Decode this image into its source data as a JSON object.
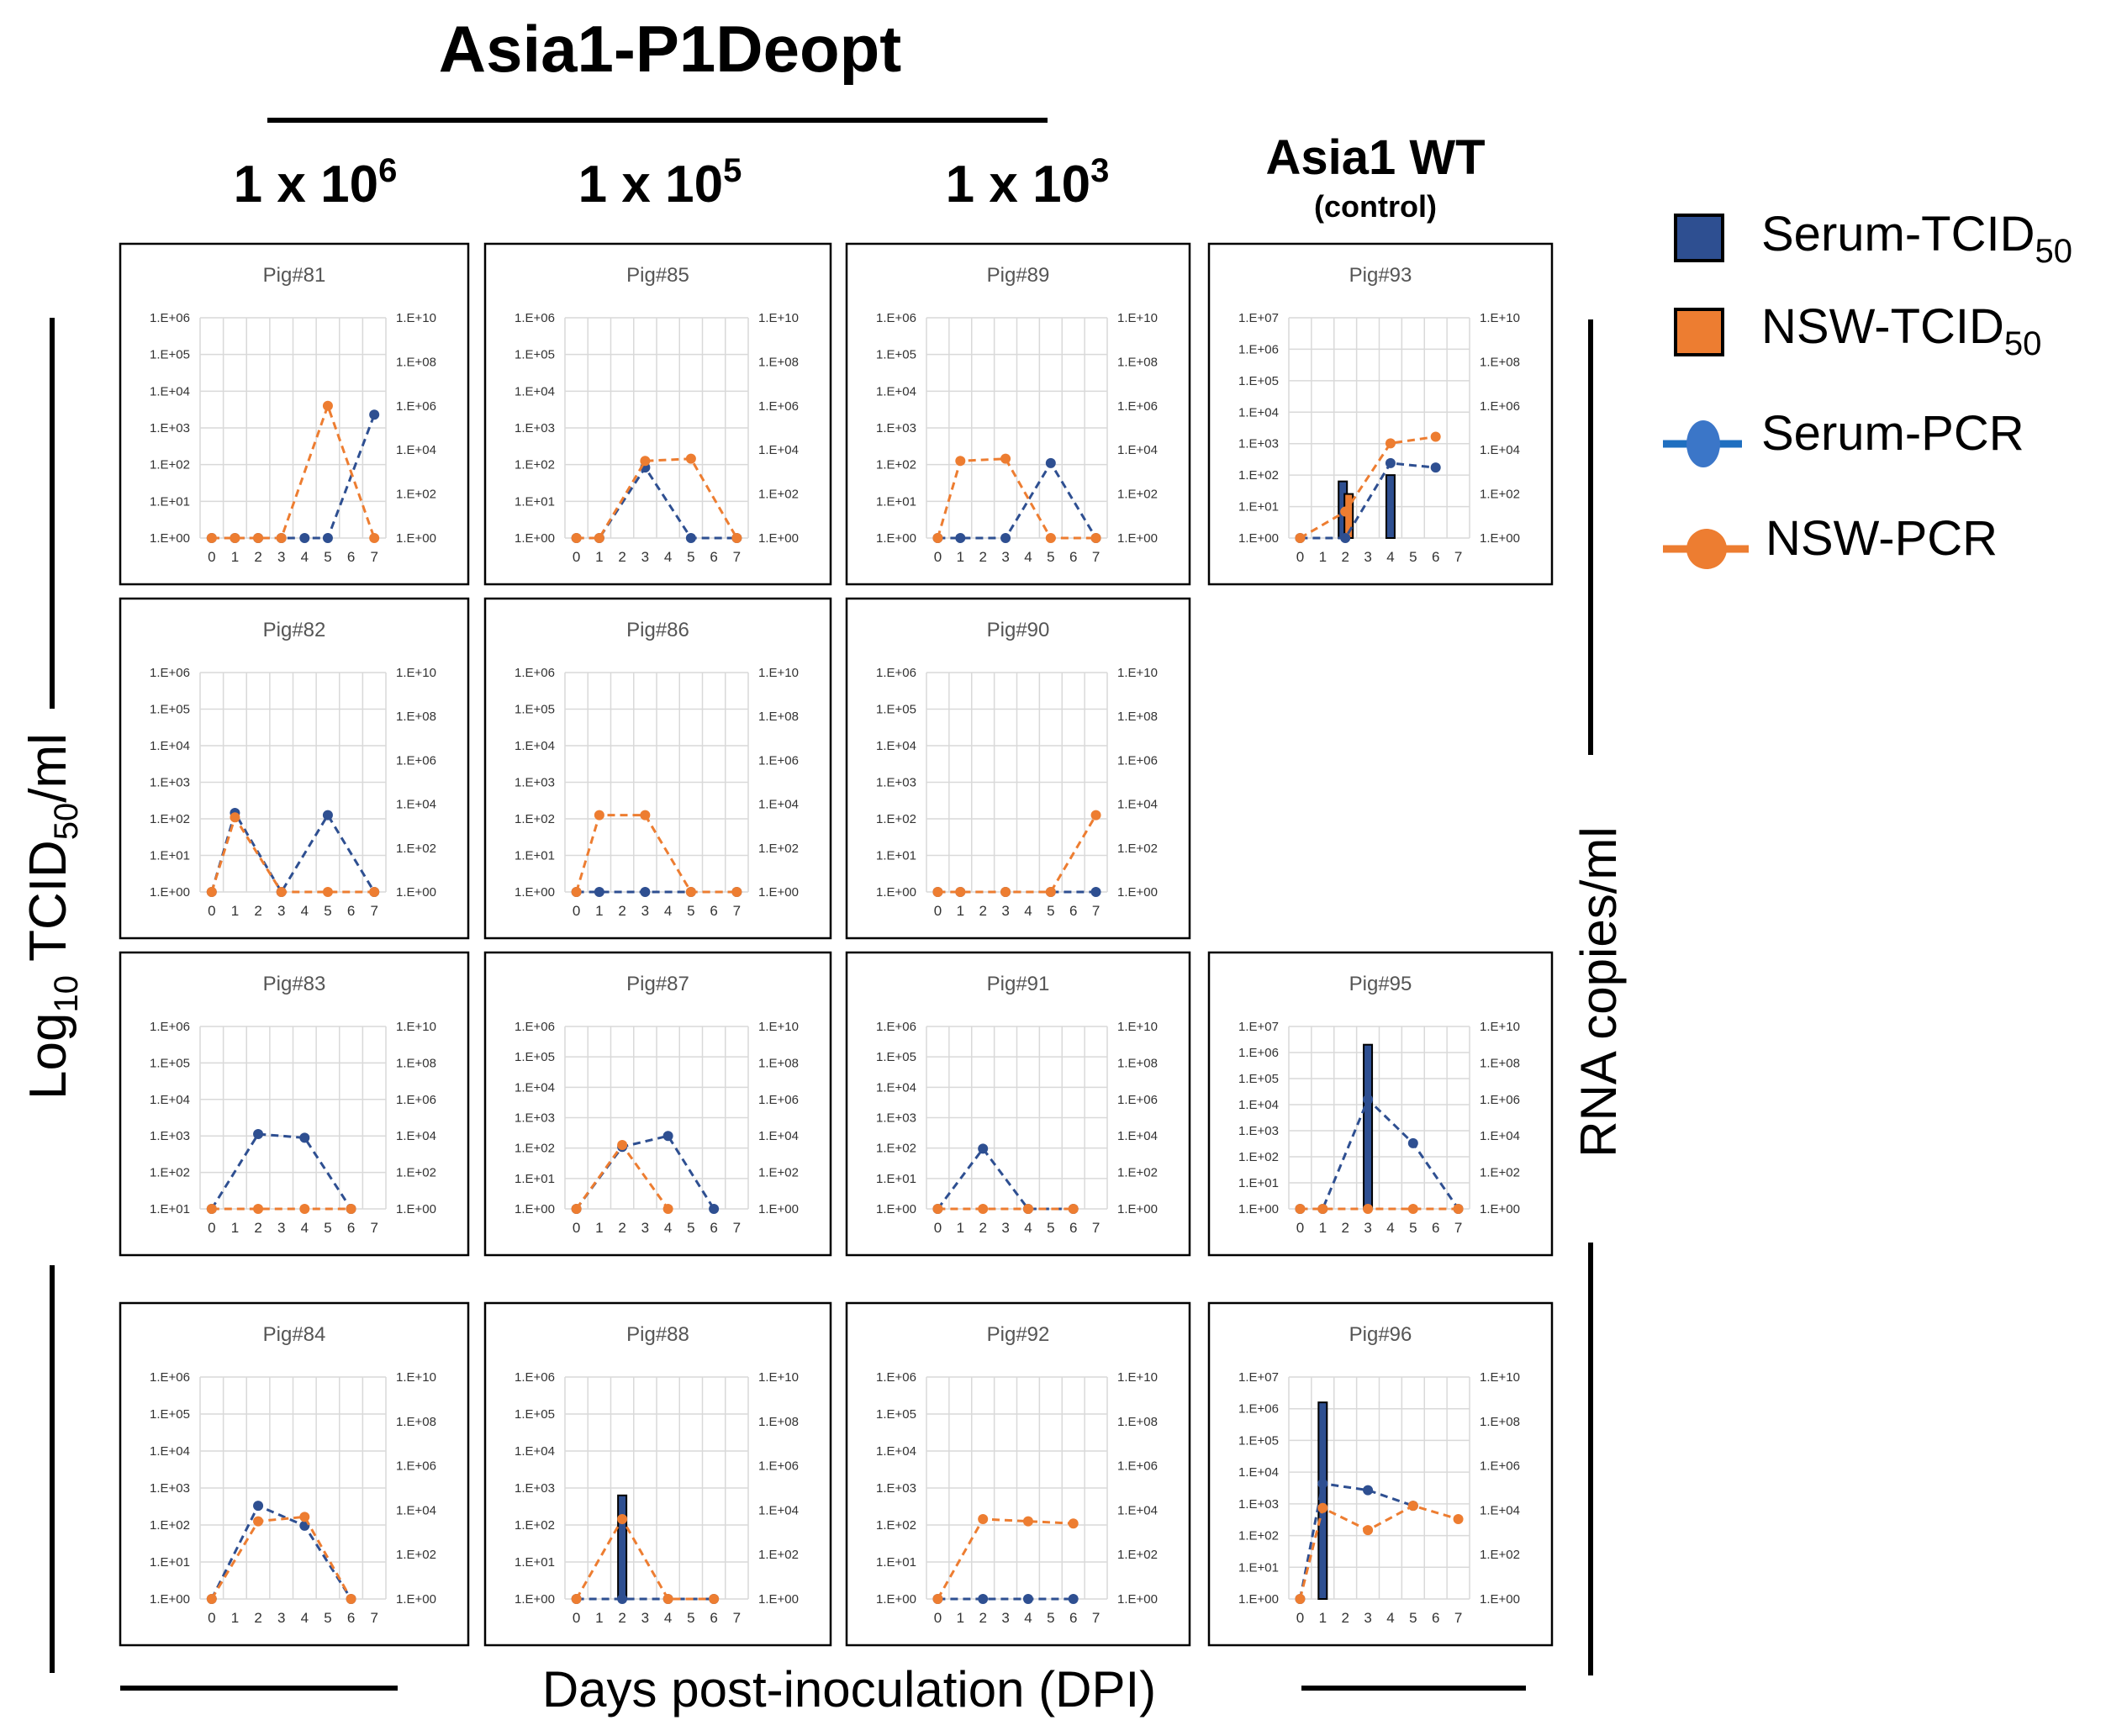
{
  "figure": {
    "title": "Asia1-P1Deopt",
    "dose_columns": [
      {
        "base": "1 x 10",
        "exp": "6"
      },
      {
        "base": "1 x 10",
        "exp": "5"
      },
      {
        "base": "1 x 10",
        "exp": "3"
      }
    ],
    "control_title": "Asia1 WT",
    "control_subtitle": "(control)",
    "ylabel_left": {
      "prefix": "Log",
      "sub": "10",
      "mid": " TCID",
      "sub2": "50",
      "suffix": "/ml"
    },
    "ylabel_right": "RNA copies/ml",
    "xlabel": "Days post-inoculation (DPI)"
  },
  "legend": [
    {
      "key": "serum_tcid",
      "label": "Serum-TCID",
      "sub": "50",
      "kind": "bar",
      "color": "#2e4f91"
    },
    {
      "key": "nsw_tcid",
      "label": "NSW-TCID",
      "sub": "50",
      "kind": "bar",
      "color": "#ed7d31"
    },
    {
      "key": "serum_pcr",
      "label": "Serum-PCR",
      "kind": "line",
      "color": "#2e4f91"
    },
    {
      "key": "nsw_pcr",
      "label": "NSW-PCR",
      "kind": "line",
      "color": "#ed7d31"
    }
  ],
  "colors": {
    "serum": "#2e4f91",
    "nsw": "#ed7d31",
    "grid": "#d9d9d9"
  },
  "chart_data": [
    {
      "type": "bar+line",
      "title": "Pig#81",
      "row": 0,
      "col": 0,
      "x": [
        0,
        1,
        2,
        3,
        4,
        5,
        6,
        7
      ],
      "left_ticks": [
        "1.E+00",
        "1.E+01",
        "1.E+02",
        "1.E+03",
        "1.E+04",
        "1.E+05",
        "1.E+06"
      ],
      "left_min_exp": 0,
      "left_max_exp": 6,
      "right_ticks": [
        "1.E+00",
        "1.E+02",
        "1.E+04",
        "1.E+06",
        "1.E+08",
        "1.E+10"
      ],
      "right_max_exp": 10,
      "bars": [],
      "serum_pcr": [
        [
          0,
          0
        ],
        [
          1,
          0
        ],
        [
          2,
          0
        ],
        [
          3,
          0
        ],
        [
          4,
          0
        ],
        [
          5,
          0
        ],
        [
          7,
          5.6
        ]
      ],
      "nsw_pcr": [
        [
          0,
          0
        ],
        [
          1,
          0
        ],
        [
          2,
          0
        ],
        [
          3,
          0
        ],
        [
          5,
          6.0
        ],
        [
          7,
          0
        ]
      ]
    },
    {
      "type": "bar+line",
      "title": "Pig#85",
      "row": 0,
      "col": 1,
      "x": [
        0,
        1,
        2,
        3,
        4,
        5,
        6,
        7
      ],
      "left_ticks": [
        "1.E+00",
        "1.E+01",
        "1.E+02",
        "1.E+03",
        "1.E+04",
        "1.E+05",
        "1.E+06"
      ],
      "left_min_exp": 0,
      "left_max_exp": 6,
      "right_ticks": [
        "1.E+00",
        "1.E+02",
        "1.E+04",
        "1.E+06",
        "1.E+08",
        "1.E+10"
      ],
      "right_max_exp": 10,
      "bars": [],
      "serum_pcr": [
        [
          0,
          0
        ],
        [
          1,
          0
        ],
        [
          3,
          3.2
        ],
        [
          5,
          0
        ],
        [
          7,
          0
        ]
      ],
      "nsw_pcr": [
        [
          0,
          0
        ],
        [
          1,
          0
        ],
        [
          3,
          3.5
        ],
        [
          5,
          3.6
        ],
        [
          7,
          0
        ]
      ]
    },
    {
      "type": "bar+line",
      "title": "Pig#89",
      "row": 0,
      "col": 2,
      "x": [
        0,
        1,
        2,
        3,
        4,
        5,
        6,
        7
      ],
      "left_ticks": [
        "1.E+00",
        "1.E+01",
        "1.E+02",
        "1.E+03",
        "1.E+04",
        "1.E+05",
        "1.E+06"
      ],
      "left_min_exp": 0,
      "left_max_exp": 6,
      "right_ticks": [
        "1.E+00",
        "1.E+02",
        "1.E+04",
        "1.E+06",
        "1.E+08",
        "1.E+10"
      ],
      "right_max_exp": 10,
      "bars": [],
      "serum_pcr": [
        [
          0,
          0
        ],
        [
          1,
          0
        ],
        [
          3,
          0
        ],
        [
          5,
          3.4
        ],
        [
          7,
          0
        ]
      ],
      "nsw_pcr": [
        [
          0,
          0
        ],
        [
          1,
          3.5
        ],
        [
          3,
          3.6
        ],
        [
          5,
          0
        ],
        [
          7,
          0
        ]
      ]
    },
    {
      "type": "bar+line",
      "title": "Pig#93",
      "row": 0,
      "col": 3,
      "x": [
        0,
        1,
        2,
        3,
        4,
        5,
        6,
        7
      ],
      "left_ticks": [
        "1.E+00",
        "1.E+01",
        "1.E+02",
        "1.E+03",
        "1.E+04",
        "1.E+05",
        "1.E+06",
        "1.E+07"
      ],
      "left_min_exp": 0,
      "left_max_exp": 7,
      "right_ticks": [
        "1.E+00",
        "1.E+02",
        "1.E+04",
        "1.E+06",
        "1.E+08",
        "1.E+10"
      ],
      "right_max_exp": 10,
      "bars": [
        {
          "x": 2,
          "serum": 1.8,
          "nsw": 1.4
        },
        {
          "x": 4,
          "serum": 2.0
        }
      ],
      "serum_pcr": [
        [
          0,
          0
        ],
        [
          2,
          0
        ],
        [
          4,
          3.4
        ],
        [
          6,
          3.2
        ]
      ],
      "nsw_pcr": [
        [
          0,
          0
        ],
        [
          2,
          1.2
        ],
        [
          4,
          4.3
        ],
        [
          6,
          4.6
        ]
      ]
    },
    {
      "type": "bar+line",
      "title": "Pig#82",
      "row": 1,
      "col": 0,
      "x": [
        0,
        1,
        2,
        3,
        4,
        5,
        6,
        7
      ],
      "left_ticks": [
        "1.E+00",
        "1.E+01",
        "1.E+02",
        "1.E+03",
        "1.E+04",
        "1.E+05",
        "1.E+06"
      ],
      "left_min_exp": 0,
      "left_max_exp": 6,
      "right_ticks": [
        "1.E+00",
        "1.E+02",
        "1.E+04",
        "1.E+06",
        "1.E+08",
        "1.E+10"
      ],
      "right_max_exp": 10,
      "bars": [],
      "serum_pcr": [
        [
          0,
          0
        ],
        [
          1,
          3.6
        ],
        [
          3,
          0
        ],
        [
          5,
          3.5
        ],
        [
          7,
          0
        ]
      ],
      "nsw_pcr": [
        [
          0,
          0
        ],
        [
          1,
          3.4
        ],
        [
          3,
          0
        ],
        [
          5,
          0
        ],
        [
          7,
          0
        ]
      ]
    },
    {
      "type": "bar+line",
      "title": "Pig#86",
      "row": 1,
      "col": 1,
      "x": [
        0,
        1,
        2,
        3,
        4,
        5,
        6,
        7
      ],
      "left_ticks": [
        "1.E+00",
        "1.E+01",
        "1.E+02",
        "1.E+03",
        "1.E+04",
        "1.E+05",
        "1.E+06"
      ],
      "left_min_exp": 0,
      "left_max_exp": 6,
      "right_ticks": [
        "1.E+00",
        "1.E+02",
        "1.E+04",
        "1.E+06",
        "1.E+08",
        "1.E+10"
      ],
      "right_max_exp": 10,
      "bars": [],
      "serum_pcr": [
        [
          0,
          0
        ],
        [
          1,
          0
        ],
        [
          3,
          0
        ],
        [
          5,
          0
        ],
        [
          7,
          0
        ]
      ],
      "nsw_pcr": [
        [
          0,
          0
        ],
        [
          1,
          3.5
        ],
        [
          3,
          3.5
        ],
        [
          5,
          0
        ],
        [
          7,
          0
        ]
      ]
    },
    {
      "type": "bar+line",
      "title": "Pig#90",
      "row": 1,
      "col": 2,
      "x": [
        0,
        1,
        2,
        3,
        4,
        5,
        6,
        7
      ],
      "left_ticks": [
        "1.E+00",
        "1.E+01",
        "1.E+02",
        "1.E+03",
        "1.E+04",
        "1.E+05",
        "1.E+06"
      ],
      "left_min_exp": 0,
      "left_max_exp": 6,
      "right_ticks": [
        "1.E+00",
        "1.E+02",
        "1.E+04",
        "1.E+06",
        "1.E+08",
        "1.E+10"
      ],
      "right_max_exp": 10,
      "bars": [],
      "serum_pcr": [
        [
          0,
          0
        ],
        [
          1,
          0
        ],
        [
          3,
          0
        ],
        [
          5,
          0
        ],
        [
          7,
          0
        ]
      ],
      "nsw_pcr": [
        [
          0,
          0
        ],
        [
          1,
          0
        ],
        [
          3,
          0
        ],
        [
          5,
          0
        ],
        [
          7,
          3.5
        ]
      ]
    },
    {
      "type": "bar+line",
      "title": "Pig#83",
      "row": 2,
      "col": 0,
      "x": [
        0,
        1,
        2,
        3,
        4,
        5,
        6,
        7
      ],
      "left_ticks": [
        "1.E+01",
        "1.E+02",
        "1.E+03",
        "1.E+04",
        "1.E+05",
        "1.E+06"
      ],
      "left_min_exp": 1,
      "left_max_exp": 6,
      "right_ticks": [
        "1.E+00",
        "1.E+02",
        "1.E+04",
        "1.E+06",
        "1.E+08",
        "1.E+10"
      ],
      "right_max_exp": 10,
      "bars": [],
      "serum_pcr": [
        [
          0,
          0
        ],
        [
          2,
          4.1
        ],
        [
          4,
          3.9
        ],
        [
          6,
          0
        ]
      ],
      "nsw_pcr": [
        [
          0,
          0
        ],
        [
          2,
          0
        ],
        [
          4,
          0
        ],
        [
          6,
          0
        ]
      ]
    },
    {
      "type": "bar+line",
      "title": "Pig#87",
      "row": 2,
      "col": 1,
      "x": [
        0,
        1,
        2,
        3,
        4,
        5,
        6,
        7
      ],
      "left_ticks": [
        "1.E+00",
        "1.E+01",
        "1.E+02",
        "1.E+03",
        "1.E+04",
        "1.E+05",
        "1.E+06"
      ],
      "left_min_exp": 0,
      "left_max_exp": 6,
      "right_ticks": [
        "1.E+00",
        "1.E+02",
        "1.E+04",
        "1.E+06",
        "1.E+08",
        "1.E+10"
      ],
      "right_max_exp": 10,
      "bars": [],
      "serum_pcr": [
        [
          0,
          0
        ],
        [
          2,
          3.4
        ],
        [
          4,
          4.0
        ],
        [
          6,
          0
        ]
      ],
      "nsw_pcr": [
        [
          0,
          0
        ],
        [
          2,
          3.5
        ],
        [
          4,
          0
        ]
      ]
    },
    {
      "type": "bar+line",
      "title": "Pig#91",
      "row": 2,
      "col": 2,
      "x": [
        0,
        1,
        2,
        3,
        4,
        5,
        6,
        7
      ],
      "left_ticks": [
        "1.E+00",
        "1.E+01",
        "1.E+02",
        "1.E+03",
        "1.E+04",
        "1.E+05",
        "1.E+06"
      ],
      "left_min_exp": 0,
      "left_max_exp": 6,
      "right_ticks": [
        "1.E+00",
        "1.E+02",
        "1.E+04",
        "1.E+06",
        "1.E+08",
        "1.E+10"
      ],
      "right_max_exp": 10,
      "bars": [],
      "serum_pcr": [
        [
          0,
          0
        ],
        [
          2,
          3.3
        ],
        [
          4,
          0
        ],
        [
          6,
          0
        ]
      ],
      "nsw_pcr": [
        [
          0,
          0
        ],
        [
          2,
          0
        ],
        [
          4,
          0
        ],
        [
          6,
          0
        ]
      ]
    },
    {
      "type": "bar+line",
      "title": "Pig#95",
      "row": 2,
      "col": 3,
      "x": [
        0,
        1,
        2,
        3,
        4,
        5,
        6,
        7
      ],
      "left_ticks": [
        "1.E+00",
        "1.E+01",
        "1.E+02",
        "1.E+03",
        "1.E+04",
        "1.E+05",
        "1.E+06",
        "1.E+07"
      ],
      "left_min_exp": 0,
      "left_max_exp": 7,
      "right_ticks": [
        "1.E+00",
        "1.E+02",
        "1.E+04",
        "1.E+06",
        "1.E+08",
        "1.E+10"
      ],
      "right_max_exp": 10,
      "bars": [
        {
          "x": 3,
          "serum": 6.3
        }
      ],
      "serum_pcr": [
        [
          0,
          0
        ],
        [
          1,
          0
        ],
        [
          3,
          6.0
        ],
        [
          5,
          3.6
        ],
        [
          7,
          0
        ]
      ],
      "nsw_pcr": [
        [
          0,
          0
        ],
        [
          1,
          0
        ],
        [
          3,
          0
        ],
        [
          5,
          0
        ],
        [
          7,
          0
        ]
      ]
    },
    {
      "type": "bar+line",
      "title": "Pig#84",
      "row": 3,
      "col": 0,
      "x": [
        0,
        1,
        2,
        3,
        4,
        5,
        6,
        7
      ],
      "left_ticks": [
        "1.E+00",
        "1.E+01",
        "1.E+02",
        "1.E+03",
        "1.E+04",
        "1.E+05",
        "1.E+06"
      ],
      "left_min_exp": 0,
      "left_max_exp": 6,
      "right_ticks": [
        "1.E+00",
        "1.E+02",
        "1.E+04",
        "1.E+06",
        "1.E+08",
        "1.E+10"
      ],
      "right_max_exp": 10,
      "bars": [],
      "serum_pcr": [
        [
          0,
          0
        ],
        [
          2,
          4.2
        ],
        [
          4,
          3.3
        ],
        [
          6,
          0
        ]
      ],
      "nsw_pcr": [
        [
          0,
          0
        ],
        [
          2,
          3.5
        ],
        [
          4,
          3.7
        ],
        [
          6,
          0
        ]
      ]
    },
    {
      "type": "bar+line",
      "title": "Pig#88",
      "row": 3,
      "col": 1,
      "x": [
        0,
        1,
        2,
        3,
        4,
        5,
        6,
        7
      ],
      "left_ticks": [
        "1.E+00",
        "1.E+01",
        "1.E+02",
        "1.E+03",
        "1.E+04",
        "1.E+05",
        "1.E+06"
      ],
      "left_min_exp": 0,
      "left_max_exp": 6,
      "right_ticks": [
        "1.E+00",
        "1.E+02",
        "1.E+04",
        "1.E+06",
        "1.E+08",
        "1.E+10"
      ],
      "right_max_exp": 10,
      "bars": [
        {
          "x": 2,
          "serum": 2.8
        }
      ],
      "serum_pcr": [
        [
          0,
          0
        ],
        [
          2,
          0
        ],
        [
          4,
          0
        ],
        [
          6,
          0
        ]
      ],
      "nsw_pcr": [
        [
          0,
          0
        ],
        [
          2,
          3.6
        ],
        [
          4,
          0
        ],
        [
          6,
          0
        ]
      ]
    },
    {
      "type": "bar+line",
      "title": "Pig#92",
      "row": 3,
      "col": 2,
      "x": [
        0,
        1,
        2,
        3,
        4,
        5,
        6,
        7
      ],
      "left_ticks": [
        "1.E+00",
        "1.E+01",
        "1.E+02",
        "1.E+03",
        "1.E+04",
        "1.E+05",
        "1.E+06"
      ],
      "left_min_exp": 0,
      "left_max_exp": 6,
      "right_ticks": [
        "1.E+00",
        "1.E+02",
        "1.E+04",
        "1.E+06",
        "1.E+08",
        "1.E+10"
      ],
      "right_max_exp": 10,
      "bars": [],
      "serum_pcr": [
        [
          0,
          0
        ],
        [
          2,
          0
        ],
        [
          4,
          0
        ],
        [
          6,
          0
        ]
      ],
      "nsw_pcr": [
        [
          0,
          0
        ],
        [
          2,
          3.6
        ],
        [
          4,
          3.5
        ],
        [
          6,
          3.4
        ]
      ]
    },
    {
      "type": "bar+line",
      "title": "Pig#96",
      "row": 3,
      "col": 3,
      "x": [
        0,
        1,
        2,
        3,
        4,
        5,
        6,
        7
      ],
      "left_ticks": [
        "1.E+00",
        "1.E+01",
        "1.E+02",
        "1.E+03",
        "1.E+04",
        "1.E+05",
        "1.E+06",
        "1.E+07"
      ],
      "left_min_exp": 0,
      "left_max_exp": 7,
      "right_ticks": [
        "1.E+00",
        "1.E+02",
        "1.E+04",
        "1.E+06",
        "1.E+08",
        "1.E+10"
      ],
      "right_max_exp": 10,
      "bars": [
        {
          "x": 1,
          "serum": 6.2
        }
      ],
      "serum_pcr": [
        [
          0,
          0
        ],
        [
          1,
          5.2
        ],
        [
          3,
          4.9
        ],
        [
          5,
          4.2
        ]
      ],
      "nsw_pcr": [
        [
          0,
          0
        ],
        [
          1,
          4.1
        ],
        [
          3,
          3.1
        ],
        [
          5,
          4.2
        ],
        [
          7,
          3.6
        ]
      ]
    }
  ]
}
